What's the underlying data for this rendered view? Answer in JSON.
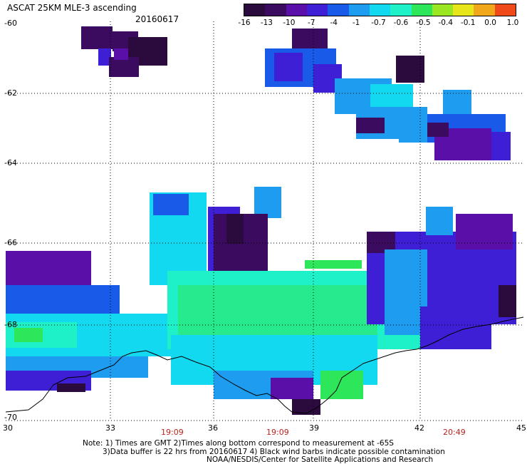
{
  "title": "ASCAT 25KM MLE-3 ascending",
  "date": "20160617",
  "colorbar": {
    "labels": [
      "-16",
      "-13",
      "-10",
      "-7",
      "-4",
      "-1",
      "-0.7",
      "-0.6",
      "-0.5",
      "-0.4",
      "-0.1",
      "0.0",
      "1.0"
    ],
    "colors": [
      "#2b0a3d",
      "#3a0b5e",
      "#5a10a8",
      "#3e1fd6",
      "#1a5ae8",
      "#1d9cf0",
      "#12d8f0",
      "#1ef0c8",
      "#2ee65a",
      "#9ae620",
      "#e6e61a",
      "#f0a81a",
      "#f04a1a"
    ]
  },
  "lat_labels": [
    "-60",
    "-62",
    "-64",
    "-66",
    "-68",
    "-70"
  ],
  "lon_labels": [
    "30",
    "33",
    "36",
    "39",
    "42",
    "45"
  ],
  "times": [
    "19:09",
    "19:09",
    "20:49"
  ],
  "notes": {
    "line1": "Note: 1) Times are GMT 2)Times along bottom correspond to measurement at -65S",
    "line2": "3)Data buffer is 22 hrs from 20160617 4) Black wind barbs indicate possible contamination",
    "line3": "NOAA/NESDIS/Center for Satellite Applications and Research"
  }
}
